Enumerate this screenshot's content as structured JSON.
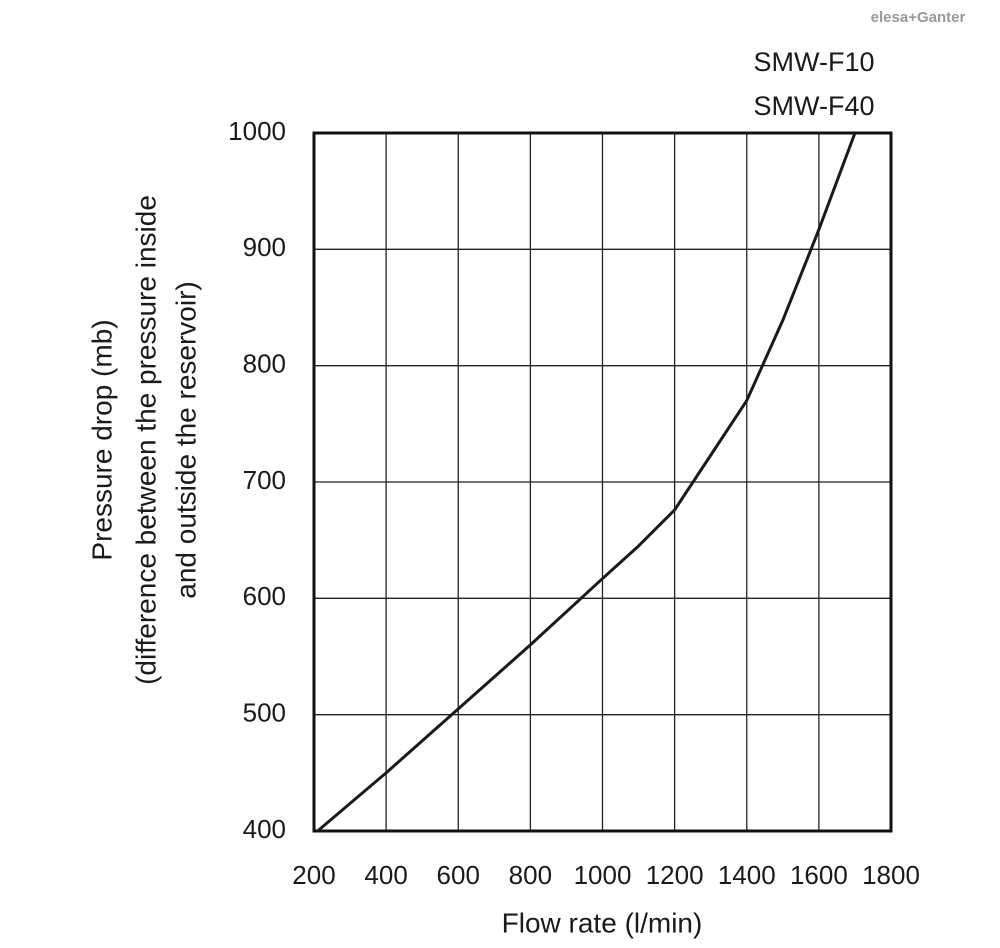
{
  "chart_data": {
    "type": "line",
    "logo": "elesa+Ganter",
    "annotations": [
      "SMW-F10",
      "SMW-F40"
    ],
    "x_label": "Flow rate (l/min)",
    "y_label": [
      "Pressure drop (mb)",
      "(difference between the pressure inside",
      "and outside the reservoir)"
    ],
    "x": [
      210,
      400,
      600,
      800,
      1000,
      1100,
      1200,
      1300,
      1400,
      1500,
      1600,
      1700
    ],
    "series": [
      {
        "color": "#1a1a1a",
        "values": [
          400,
          450,
          505,
          560,
          617,
          645,
          676,
          723,
          770,
          839,
          917,
          1000
        ]
      }
    ],
    "xlim": [
      200,
      1800
    ],
    "xticks": [
      200,
      400,
      600,
      800,
      1000,
      1200,
      1400,
      1600,
      1800
    ],
    "ylim": [
      400,
      1000
    ],
    "yticks": [
      400,
      500,
      600,
      700,
      800,
      900,
      1000
    ],
    "grid": true
  }
}
